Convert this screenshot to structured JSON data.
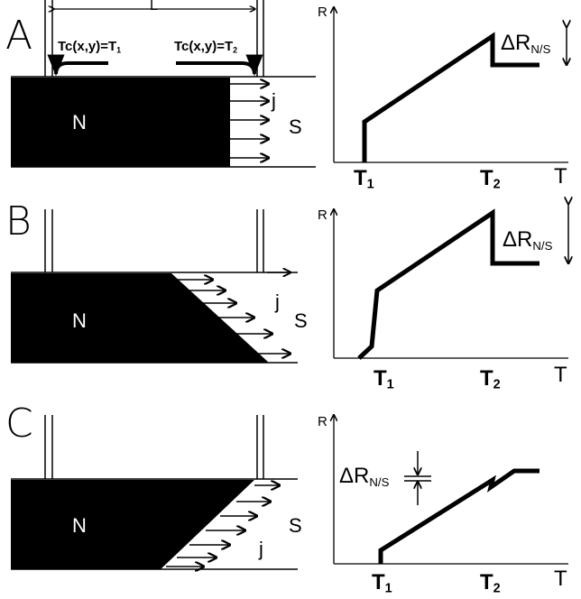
{
  "panels": [
    {
      "letter": "A",
      "length_label": "L",
      "tc_left_label": "Tc(x,y)=T",
      "tc_left_sub": "1",
      "tc_right_label": "Tc(x,y)=T",
      "tc_right_sub": "2",
      "n_label": "N",
      "s_label": "S",
      "j_label": "j",
      "graph": {
        "y_axis": "R",
        "x_axis": "T",
        "t1_label": "T",
        "t1_sub": "1",
        "t2_label": "T",
        "t2_sub": "2",
        "delta_label": "ΔR",
        "delta_sub": "N/S"
      }
    },
    {
      "letter": "B",
      "n_label": "N",
      "s_label": "S",
      "j_label": "j",
      "graph": {
        "y_axis": "R",
        "x_axis": "T",
        "t1_label": "T",
        "t1_sub": "1",
        "t2_label": "T",
        "t2_sub": "2",
        "delta_label": "ΔR",
        "delta_sub": "N/S"
      }
    },
    {
      "letter": "C",
      "n_label": "N",
      "s_label": "S",
      "j_label": "j",
      "graph": {
        "y_axis": "R",
        "x_axis": "T",
        "t1_label": "T",
        "t1_sub": "1",
        "t2_label": "T",
        "t2_sub": "2",
        "delta_label": "ΔR",
        "delta_sub": "N/S"
      }
    }
  ]
}
